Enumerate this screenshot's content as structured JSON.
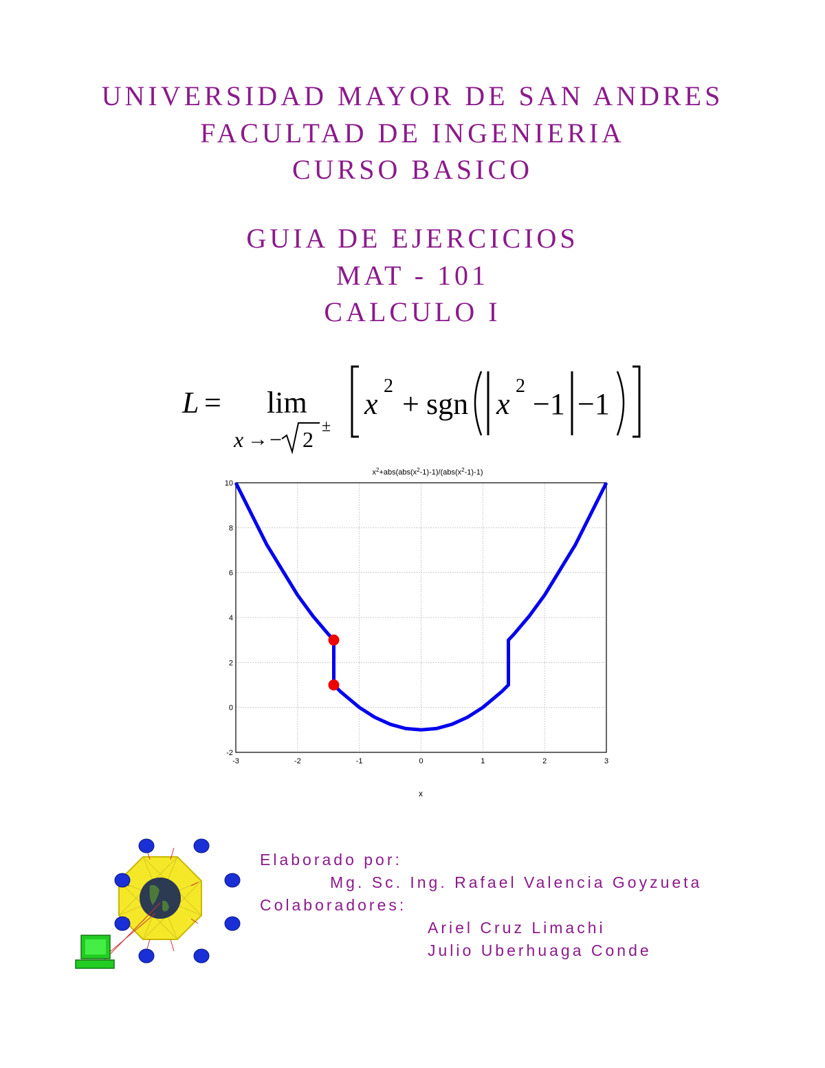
{
  "header": {
    "university": "UNIVERSIDAD MAYOR DE SAN ANDRES",
    "faculty": "FACULTAD DE INGENIERIA",
    "course": "CURSO BASICO",
    "guide": "GUIA DE EJERCICIOS",
    "code": "MAT - 101",
    "subject": "CALCULO I"
  },
  "formula": {
    "lhs": "L",
    "equals": "=",
    "lim": "lim",
    "sub_var": "x",
    "sub_arrow": "→",
    "sub_minus": "−",
    "sub_root": "2",
    "sub_pm": "±",
    "body_x": "x",
    "body_exp": "2",
    "body_plus": "+",
    "body_sgn": "sgn",
    "body_inner_x": "x",
    "body_inner_exp": "2",
    "body_minus1": "−1",
    "body_minus2": "−1"
  },
  "chart_data": {
    "type": "line",
    "title_base": "x",
    "title_sup1": "2",
    "title_mid": "+abs(abs(x",
    "title_sup2": "2",
    "title_mid2": "-1)-1)/(abs(x",
    "title_sup3": "2",
    "title_end": "-1)-1)",
    "xlabel": "x",
    "ylabel": "",
    "xlim": [
      -3,
      3
    ],
    "ylim": [
      -2,
      10
    ],
    "x_ticks": [
      "-3",
      "-2",
      "-1",
      "0",
      "1",
      "2",
      "3"
    ],
    "y_ticks": [
      "-2",
      "0",
      "2",
      "4",
      "6",
      "8",
      "10"
    ],
    "grid": true,
    "line_color": "#0000ee",
    "marker_color": "#ee0000",
    "series": [
      {
        "x": [
          -3,
          -2.5,
          -2,
          -1.75,
          -1.5,
          -1.414,
          -1.414,
          -1.3,
          -1.0,
          -0.75,
          -0.5,
          -0.25,
          0,
          0.25,
          0.5,
          0.75,
          1.0,
          1.3,
          1.414,
          1.414,
          1.5,
          1.75,
          2,
          2.5,
          3
        ],
        "y": [
          10,
          7.25,
          5,
          4.06,
          3.25,
          3,
          1,
          0.69,
          0,
          -0.44,
          -0.75,
          -0.94,
          -1,
          -0.94,
          -0.75,
          -0.44,
          0,
          0.69,
          1,
          3,
          3.25,
          4.06,
          5,
          7.25,
          10
        ]
      }
    ],
    "markers": [
      {
        "x": -1.414,
        "y": 3
      },
      {
        "x": -1.414,
        "y": 1
      }
    ]
  },
  "credits": {
    "prepared_label": "Elaborado por:",
    "author": "Mg. Sc. Ing. Rafael Valencia Goyzueta",
    "collaborators_label": "Colaboradores:",
    "collaborator_1": "Ariel Cruz Limachi",
    "collaborator_2": "Julio Uberhuaga Conde"
  },
  "logo": {
    "icon": "network-globe-icon",
    "ring_color": "#f4e829",
    "node_color": "#1a2fd6",
    "computer_color": "#22cc22"
  }
}
